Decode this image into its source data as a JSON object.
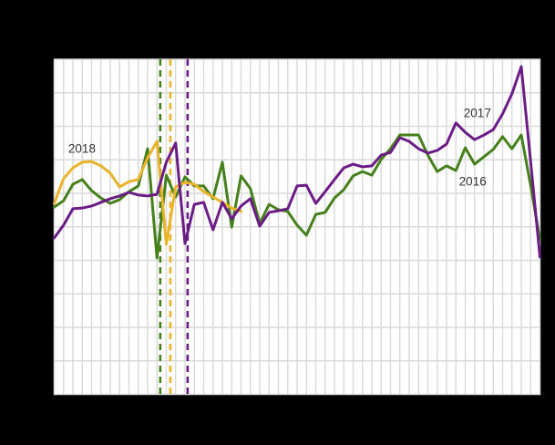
{
  "canvas": {
    "background_color": "#000000",
    "plot_background_color": "#ffffff",
    "gridline_color": "#d9d9d9",
    "label_text_color": "#333333"
  },
  "chart_data": {
    "type": "line",
    "title": "",
    "xlabel": "",
    "ylabel": "",
    "x_axis": {
      "unit": "week",
      "range": [
        1,
        53
      ],
      "tick_labels_visible": false,
      "weekly_gridlines": true
    },
    "y_axis": {
      "range_gridline_units": [
        0,
        10
      ],
      "gridline_rows": 10,
      "tick_labels_visible": false
    },
    "grid": "on",
    "legend_position": "none (inline year labels on plot)",
    "series": [
      {
        "name": "2016",
        "color": "#45801b",
        "start_week": 1,
        "values": [
          5.59,
          5.78,
          6.27,
          6.41,
          6.08,
          5.86,
          5.7,
          5.81,
          6.05,
          6.22,
          7.33,
          4.07,
          6.54,
          5.89,
          6.49,
          6.22,
          6.22,
          5.84,
          6.93,
          4.99,
          6.52,
          6.14,
          5.1,
          5.67,
          5.51,
          5.46,
          5.05,
          4.75,
          5.37,
          5.43,
          5.86,
          6.11,
          6.52,
          6.65,
          6.54,
          7.01,
          7.33,
          7.74,
          7.74,
          7.74,
          7.14,
          6.65,
          6.82,
          6.68,
          7.36,
          6.87,
          7.09,
          7.31,
          7.69,
          7.33,
          7.74,
          6.24,
          4.61
        ]
      },
      {
        "name": "2018",
        "color": "#ebb32a",
        "start_week": 1,
        "values": [
          5.7,
          6.44,
          6.76,
          6.93,
          6.95,
          6.82,
          6.6,
          6.19,
          6.35,
          6.41,
          7.06,
          7.55,
          4.48,
          6.19,
          6.33,
          6.27,
          6.05,
          5.89,
          5.73,
          5.56,
          5.46
        ]
      },
      {
        "name": "2017",
        "color": "#6b1c86",
        "start_week": 1,
        "values": [
          4.67,
          5.05,
          5.54,
          5.56,
          5.62,
          5.73,
          5.84,
          5.92,
          6.03,
          5.95,
          5.92,
          5.97,
          6.93,
          7.5,
          4.5,
          5.67,
          5.73,
          4.91,
          5.73,
          5.24,
          5.62,
          5.84,
          5.02,
          5.43,
          5.48,
          5.54,
          6.22,
          6.24,
          5.7,
          6.05,
          6.41,
          6.76,
          6.87,
          6.79,
          6.82,
          7.14,
          7.22,
          7.66,
          7.55,
          7.33,
          7.2,
          7.28,
          7.47,
          8.1,
          7.82,
          7.6,
          7.74,
          7.9,
          8.37,
          8.97,
          9.78,
          6.95,
          4.1
        ]
      }
    ],
    "markers": [
      {
        "name": "dashed-marker-green",
        "series": "2016",
        "week": 12.35,
        "color": "#45801b",
        "style": "dashed"
      },
      {
        "name": "dashed-marker-gold",
        "series": "2018",
        "week": 13.43,
        "color": "#ebb32a",
        "style": "dashed"
      },
      {
        "name": "dashed-marker-purple",
        "series": "2017",
        "week": 15.28,
        "color": "#6b1c86",
        "style": "dashed"
      }
    ],
    "labels": [
      {
        "text": "2018",
        "week": 3.97,
        "value": 7.34
      },
      {
        "text": "2017",
        "week": 46.3,
        "value": 8.39
      },
      {
        "text": "2016",
        "week": 45.8,
        "value": 6.35
      }
    ]
  }
}
